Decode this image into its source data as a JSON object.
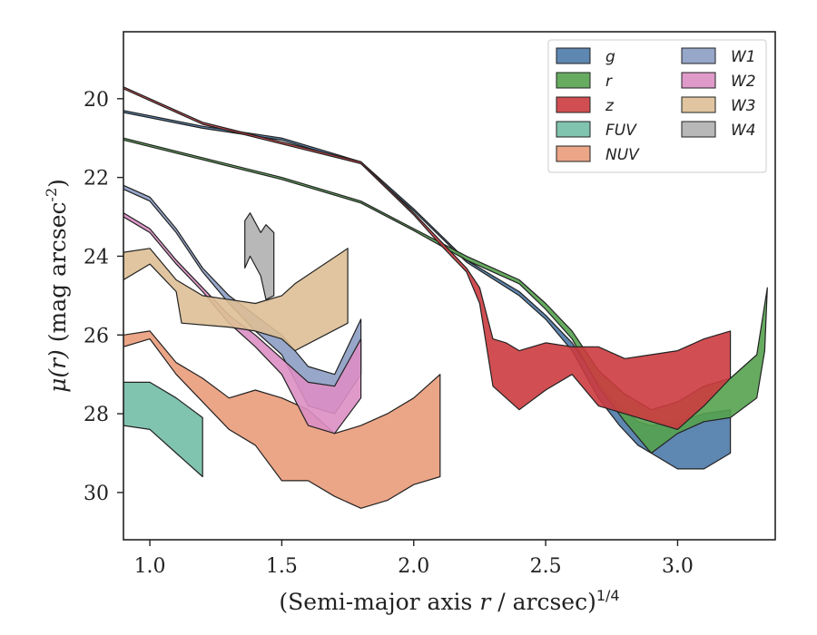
{
  "chart_data": {
    "type": "area",
    "xlabel": "(Semi-major axis r / arcsec)^{1/4}",
    "ylabel": "μ(r) (mag arcsec^{-2})",
    "xlim": [
      0.9,
      3.37
    ],
    "ylim": [
      31.2,
      18.3
    ],
    "y_inverted": true,
    "x_ticks": [
      "1.0",
      "1.5",
      "2.0",
      "2.5",
      "3.0"
    ],
    "x_tick_values": [
      1.0,
      1.5,
      2.0,
      2.5,
      3.0
    ],
    "y_ticks": [
      "20",
      "22",
      "24",
      "26",
      "28",
      "30"
    ],
    "y_tick_values": [
      20,
      22,
      24,
      26,
      28,
      30
    ],
    "grid": false,
    "legend_position": "top-right",
    "legend_columns": 2,
    "series": [
      {
        "name": "g",
        "color": "#4c7aa8",
        "upper": [
          [
            0.9,
            20.3
          ],
          [
            1.2,
            20.7
          ],
          [
            1.5,
            21.0
          ],
          [
            1.8,
            21.6
          ],
          [
            2.0,
            22.8
          ],
          [
            2.2,
            24.1
          ],
          [
            2.4,
            24.9
          ],
          [
            2.5,
            25.5
          ],
          [
            2.6,
            26.2
          ],
          [
            2.7,
            27.2
          ],
          [
            2.78,
            27.8
          ],
          [
            2.85,
            28.2
          ],
          [
            2.9,
            28.3
          ],
          [
            3.0,
            28.2
          ],
          [
            3.1,
            28.0
          ],
          [
            3.2,
            27.9
          ]
        ],
        "lower": [
          [
            0.9,
            20.35
          ],
          [
            1.2,
            20.75
          ],
          [
            1.5,
            21.05
          ],
          [
            1.8,
            21.65
          ],
          [
            2.0,
            22.85
          ],
          [
            2.2,
            24.15
          ],
          [
            2.4,
            25.0
          ],
          [
            2.5,
            25.6
          ],
          [
            2.6,
            26.4
          ],
          [
            2.7,
            27.6
          ],
          [
            2.78,
            28.3
          ],
          [
            2.85,
            28.8
          ],
          [
            2.9,
            29.0
          ],
          [
            3.0,
            29.4
          ],
          [
            3.1,
            29.4
          ],
          [
            3.2,
            29.0
          ]
        ]
      },
      {
        "name": "r",
        "color": "#55a24f",
        "upper": [
          [
            0.9,
            21.0
          ],
          [
            1.2,
            21.5
          ],
          [
            1.5,
            22.0
          ],
          [
            1.8,
            22.6
          ],
          [
            2.0,
            23.3
          ],
          [
            2.2,
            24.0
          ],
          [
            2.4,
            24.6
          ],
          [
            2.5,
            25.2
          ],
          [
            2.6,
            25.9
          ],
          [
            2.7,
            26.9
          ],
          [
            2.8,
            27.5
          ],
          [
            2.9,
            27.9
          ],
          [
            3.0,
            27.7
          ],
          [
            3.1,
            27.3
          ],
          [
            3.2,
            27.1
          ],
          [
            3.3,
            26.5
          ],
          [
            3.34,
            24.8
          ]
        ],
        "lower": [
          [
            0.9,
            21.05
          ],
          [
            1.2,
            21.55
          ],
          [
            1.5,
            22.05
          ],
          [
            1.8,
            22.65
          ],
          [
            2.0,
            23.35
          ],
          [
            2.2,
            24.1
          ],
          [
            2.4,
            24.7
          ],
          [
            2.5,
            25.35
          ],
          [
            2.6,
            26.1
          ],
          [
            2.7,
            27.3
          ],
          [
            2.8,
            28.2
          ],
          [
            2.9,
            29.0
          ],
          [
            3.0,
            28.5
          ],
          [
            3.1,
            28.2
          ],
          [
            3.2,
            28.1
          ],
          [
            3.3,
            27.6
          ],
          [
            3.33,
            26.4
          ]
        ]
      },
      {
        "name": "z",
        "color": "#cc3b3f",
        "upper": [
          [
            0.9,
            19.7
          ],
          [
            1.2,
            20.6
          ],
          [
            1.5,
            21.1
          ],
          [
            1.8,
            21.6
          ],
          [
            2.0,
            22.9
          ],
          [
            2.1,
            23.6
          ],
          [
            2.2,
            24.3
          ],
          [
            2.25,
            24.8
          ],
          [
            2.3,
            26.1
          ],
          [
            2.35,
            26.2
          ],
          [
            2.4,
            26.4
          ],
          [
            2.5,
            26.2
          ],
          [
            2.6,
            26.3
          ],
          [
            2.7,
            26.3
          ],
          [
            2.8,
            26.6
          ],
          [
            2.9,
            26.5
          ],
          [
            3.0,
            26.4
          ],
          [
            3.1,
            26.1
          ],
          [
            3.2,
            25.9
          ]
        ],
        "lower": [
          [
            0.9,
            19.75
          ],
          [
            1.2,
            20.65
          ],
          [
            1.5,
            21.15
          ],
          [
            1.8,
            21.65
          ],
          [
            2.0,
            22.95
          ],
          [
            2.1,
            23.7
          ],
          [
            2.2,
            24.4
          ],
          [
            2.25,
            25.2
          ],
          [
            2.3,
            27.3
          ],
          [
            2.35,
            27.6
          ],
          [
            2.4,
            27.9
          ],
          [
            2.5,
            27.4
          ],
          [
            2.6,
            27.0
          ],
          [
            2.7,
            27.8
          ],
          [
            2.8,
            28.0
          ],
          [
            2.9,
            28.2
          ],
          [
            3.0,
            28.4
          ],
          [
            3.1,
            27.8
          ],
          [
            3.2,
            27.1
          ]
        ]
      },
      {
        "name": "FUV",
        "color": "#72bda6",
        "upper": [
          [
            0.9,
            27.2
          ],
          [
            1.0,
            27.2
          ],
          [
            1.1,
            27.6
          ],
          [
            1.2,
            28.1
          ]
        ],
        "lower": [
          [
            0.9,
            28.3
          ],
          [
            1.0,
            28.4
          ],
          [
            1.1,
            29.0
          ],
          [
            1.2,
            29.6
          ]
        ]
      },
      {
        "name": "NUV",
        "color": "#e99b7a",
        "upper": [
          [
            0.9,
            26.0
          ],
          [
            1.0,
            25.9
          ],
          [
            1.1,
            26.7
          ],
          [
            1.2,
            27.1
          ],
          [
            1.3,
            27.6
          ],
          [
            1.4,
            27.4
          ],
          [
            1.5,
            27.6
          ],
          [
            1.6,
            27.9
          ],
          [
            1.7,
            28.5
          ],
          [
            1.8,
            28.3
          ],
          [
            1.9,
            28.0
          ],
          [
            2.0,
            27.6
          ],
          [
            2.1,
            27.0
          ]
        ],
        "lower": [
          [
            0.9,
            26.3
          ],
          [
            1.0,
            26.1
          ],
          [
            1.1,
            27.0
          ],
          [
            1.2,
            27.7
          ],
          [
            1.3,
            28.4
          ],
          [
            1.4,
            28.8
          ],
          [
            1.5,
            29.7
          ],
          [
            1.6,
            29.7
          ],
          [
            1.7,
            30.1
          ],
          [
            1.8,
            30.4
          ],
          [
            1.9,
            30.2
          ],
          [
            2.0,
            29.8
          ],
          [
            2.1,
            29.6
          ]
        ]
      },
      {
        "name": "W1",
        "color": "#8c9dc4",
        "upper": [
          [
            0.9,
            22.2
          ],
          [
            1.0,
            22.5
          ],
          [
            1.1,
            23.3
          ],
          [
            1.2,
            24.3
          ],
          [
            1.3,
            25.0
          ],
          [
            1.4,
            25.5
          ],
          [
            1.5,
            26.0
          ],
          [
            1.6,
            26.8
          ],
          [
            1.7,
            27.0
          ],
          [
            1.8,
            25.6
          ]
        ],
        "lower": [
          [
            0.9,
            22.3
          ],
          [
            1.0,
            22.6
          ],
          [
            1.1,
            23.4
          ],
          [
            1.2,
            24.4
          ],
          [
            1.3,
            25.2
          ],
          [
            1.4,
            25.9
          ],
          [
            1.5,
            26.5
          ],
          [
            1.6,
            27.8
          ],
          [
            1.7,
            28.0
          ],
          [
            1.8,
            27.0
          ]
        ]
      },
      {
        "name": "W2",
        "color": "#db8fc4",
        "upper": [
          [
            0.9,
            22.9
          ],
          [
            1.0,
            23.3
          ],
          [
            1.1,
            24.1
          ],
          [
            1.2,
            24.8
          ],
          [
            1.3,
            25.5
          ],
          [
            1.4,
            26.0
          ],
          [
            1.5,
            26.6
          ],
          [
            1.6,
            27.2
          ],
          [
            1.7,
            27.3
          ],
          [
            1.8,
            26.1
          ]
        ],
        "lower": [
          [
            0.9,
            23.0
          ],
          [
            1.0,
            23.4
          ],
          [
            1.1,
            24.2
          ],
          [
            1.2,
            24.9
          ],
          [
            1.3,
            25.7
          ],
          [
            1.4,
            26.3
          ],
          [
            1.5,
            27.0
          ],
          [
            1.6,
            28.3
          ],
          [
            1.7,
            28.5
          ],
          [
            1.8,
            27.6
          ]
        ]
      },
      {
        "name": "W3",
        "color": "#ddbf96",
        "upper": [
          [
            0.9,
            23.9
          ],
          [
            1.0,
            23.8
          ],
          [
            1.1,
            24.6
          ],
          [
            1.2,
            25.0
          ],
          [
            1.3,
            25.1
          ],
          [
            1.4,
            25.2
          ],
          [
            1.5,
            25.0
          ],
          [
            1.55,
            24.7
          ],
          [
            1.75,
            23.8
          ]
        ],
        "lower": [
          [
            0.9,
            24.6
          ],
          [
            1.0,
            24.2
          ],
          [
            1.1,
            24.9
          ],
          [
            1.12,
            25.7
          ],
          [
            1.3,
            25.8
          ],
          [
            1.4,
            25.9
          ],
          [
            1.5,
            26.1
          ],
          [
            1.55,
            26.4
          ],
          [
            1.75,
            25.7
          ]
        ]
      },
      {
        "name": "W4",
        "color": "#b0b0b0",
        "upper": [
          [
            1.36,
            23.1
          ],
          [
            1.38,
            22.9
          ],
          [
            1.42,
            23.4
          ],
          [
            1.44,
            23.2
          ],
          [
            1.47,
            23.4
          ]
        ],
        "lower": [
          [
            1.36,
            24.3
          ],
          [
            1.38,
            24.0
          ],
          [
            1.42,
            24.5
          ],
          [
            1.44,
            25.1
          ],
          [
            1.47,
            25.0
          ]
        ]
      }
    ]
  }
}
